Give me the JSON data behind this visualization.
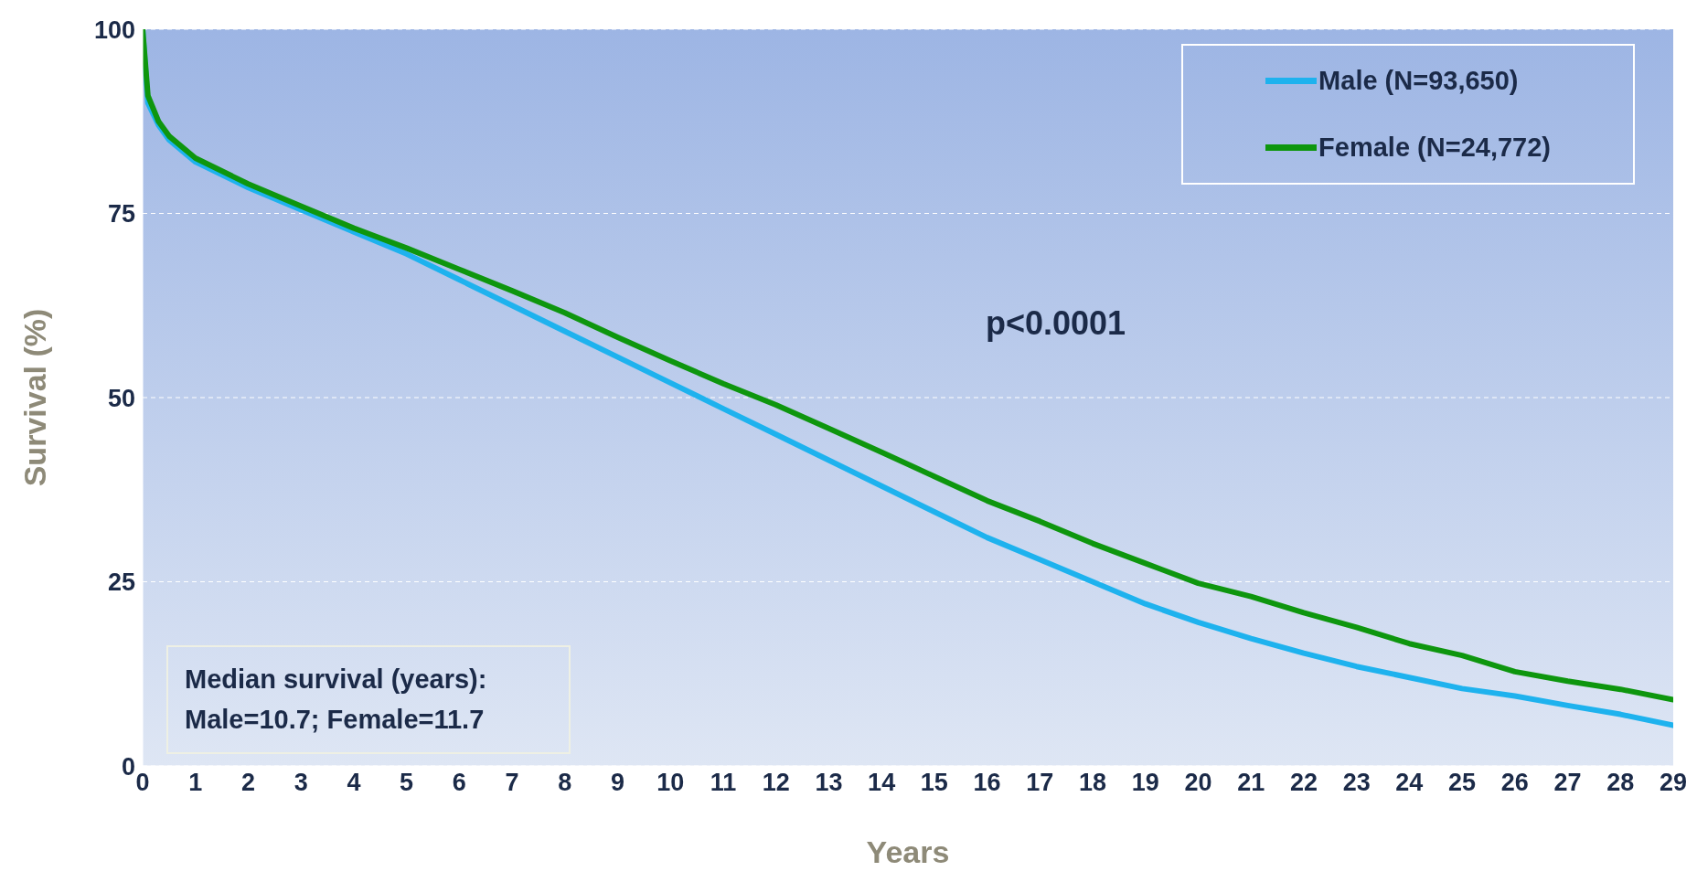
{
  "chart_data": {
    "type": "line",
    "xlabel": "Years",
    "ylabel": "Survival (%)",
    "x": [
      0,
      0.1,
      0.3,
      0.5,
      1,
      2,
      3,
      4,
      5,
      6,
      7,
      8,
      9,
      10,
      11,
      12,
      13,
      14,
      15,
      16,
      17,
      18,
      19,
      20,
      21,
      22,
      23,
      24,
      25,
      26,
      27,
      28,
      29
    ],
    "series": [
      {
        "name": "Male (N=93,650)",
        "color": "#1eb2ee",
        "values": [
          100,
          90,
          87,
          85,
          82,
          78.5,
          75.5,
          72.5,
          69.5,
          66,
          62.5,
          59,
          55.5,
          52,
          48.5,
          45,
          41.5,
          38,
          34.5,
          31,
          28,
          25,
          22,
          19.5,
          17.3,
          15.3,
          13.5,
          12,
          10.5,
          9.5,
          8.2,
          7,
          5.5
        ]
      },
      {
        "name": "Female (N=24,772)",
        "color": "#0e960e",
        "values": [
          100,
          91,
          87.5,
          85.5,
          82.5,
          79,
          76,
          73,
          70.3,
          67.4,
          64.5,
          61.5,
          58.2,
          55,
          51.9,
          49,
          45.8,
          42.6,
          39.3,
          36,
          33.2,
          30.2,
          27.5,
          24.8,
          23,
          20.8,
          18.8,
          16.6,
          15,
          12.8,
          11.5,
          10.4,
          9
        ]
      }
    ],
    "xlim": [
      0,
      29
    ],
    "xticks": [
      0,
      1,
      2,
      3,
      4,
      5,
      6,
      7,
      8,
      9,
      10,
      11,
      12,
      13,
      14,
      15,
      16,
      17,
      18,
      19,
      20,
      21,
      22,
      23,
      24,
      25,
      26,
      27,
      28,
      29
    ],
    "ylim": [
      0,
      100
    ],
    "yticks": [
      0,
      25,
      50,
      75,
      100
    ],
    "grid": "y",
    "legend": "top right",
    "marker": "none",
    "line_style": "solid",
    "annotations": [
      "p<0.0001",
      "Median survival (years):\nMale=10.7; Female=11.7"
    ]
  }
}
